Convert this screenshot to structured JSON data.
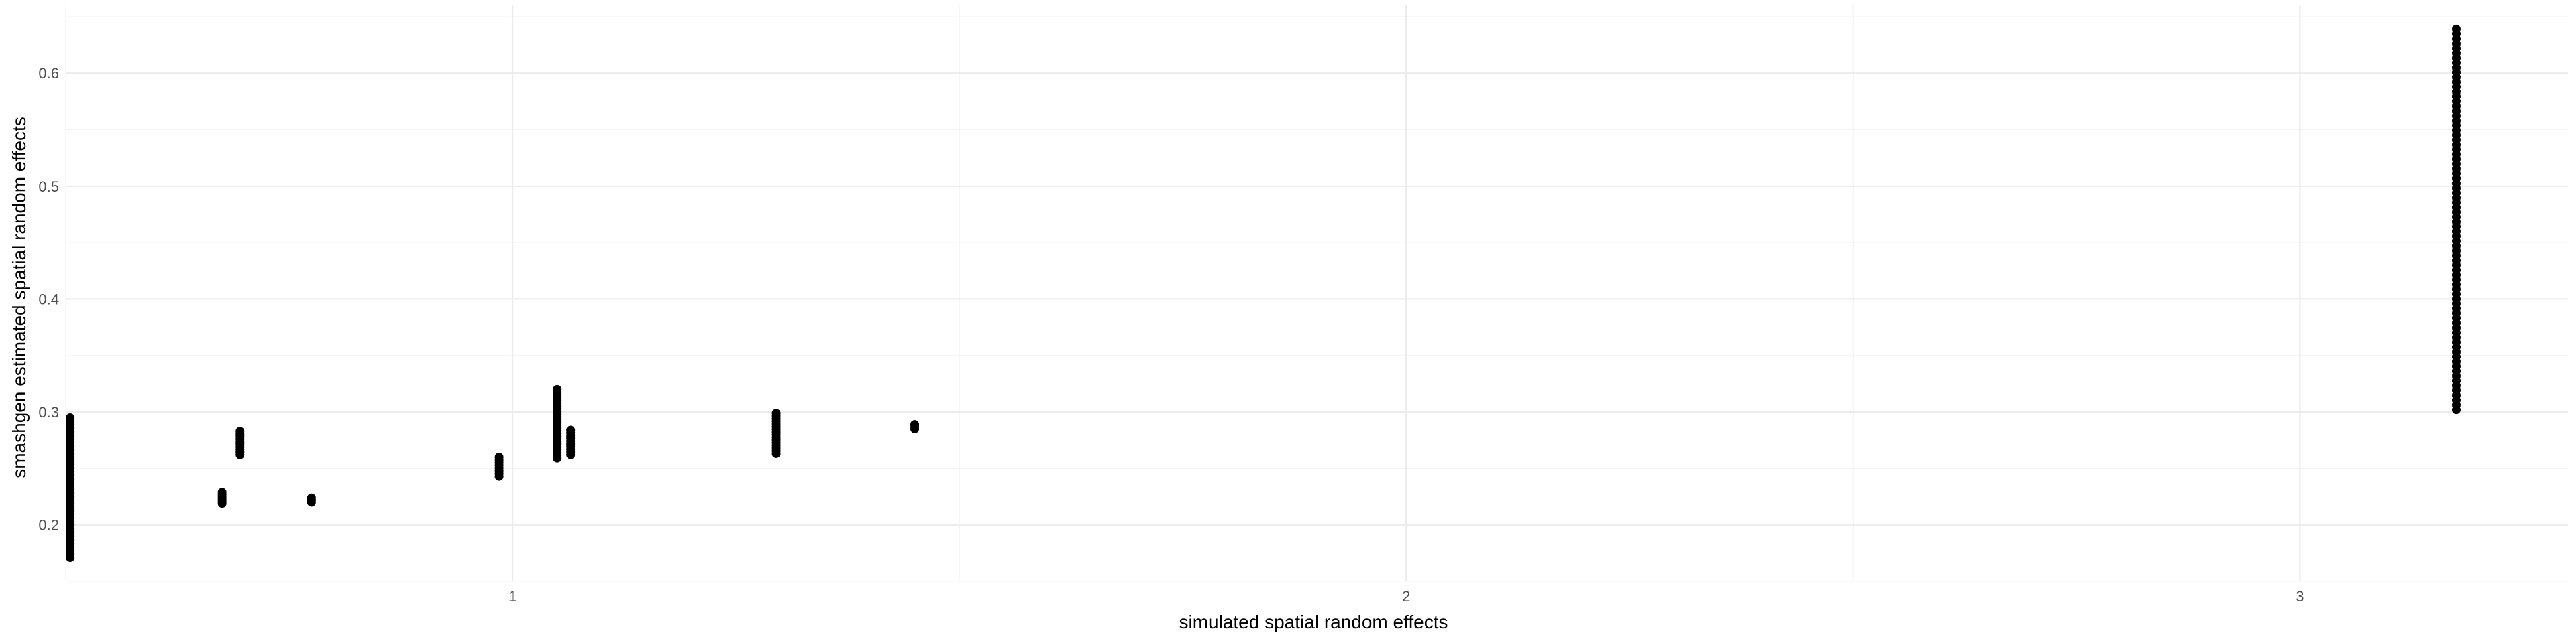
{
  "chart_data": {
    "type": "scatter",
    "title": "",
    "xlabel": "simulated spatial random effects",
    "ylabel": "smashgen estimated spatial random effects",
    "xlim": [
      0.5,
      3.3
    ],
    "ylim": [
      0.15,
      0.66
    ],
    "x_ticks": [
      1,
      2,
      3
    ],
    "x_tick_labels": [
      "1",
      "2",
      "3"
    ],
    "y_ticks": [
      0.2,
      0.3,
      0.4,
      0.5,
      0.6
    ],
    "y_tick_labels": [
      "0.2",
      "0.3",
      "0.4",
      "0.5",
      "0.6"
    ],
    "grid": true,
    "legend": "none",
    "point_color": "#000000",
    "clusters": [
      {
        "x": 0.505,
        "y_min": 0.171,
        "y_max": 0.295,
        "n": 40
      },
      {
        "x": 0.675,
        "y_min": 0.219,
        "y_max": 0.229,
        "n": 6
      },
      {
        "x": 0.695,
        "y_min": 0.262,
        "y_max": 0.283,
        "n": 10
      },
      {
        "x": 0.775,
        "y_min": 0.22,
        "y_max": 0.224,
        "n": 3
      },
      {
        "x": 0.985,
        "y_min": 0.243,
        "y_max": 0.26,
        "n": 8
      },
      {
        "x": 1.05,
        "y_min": 0.259,
        "y_max": 0.32,
        "n": 26
      },
      {
        "x": 1.065,
        "y_min": 0.262,
        "y_max": 0.284,
        "n": 10
      },
      {
        "x": 1.295,
        "y_min": 0.263,
        "y_max": 0.299,
        "n": 16
      },
      {
        "x": 1.45,
        "y_min": 0.285,
        "y_max": 0.289,
        "n": 3
      },
      {
        "x": 3.175,
        "y_min": 0.302,
        "y_max": 0.639,
        "n": 80
      }
    ]
  }
}
